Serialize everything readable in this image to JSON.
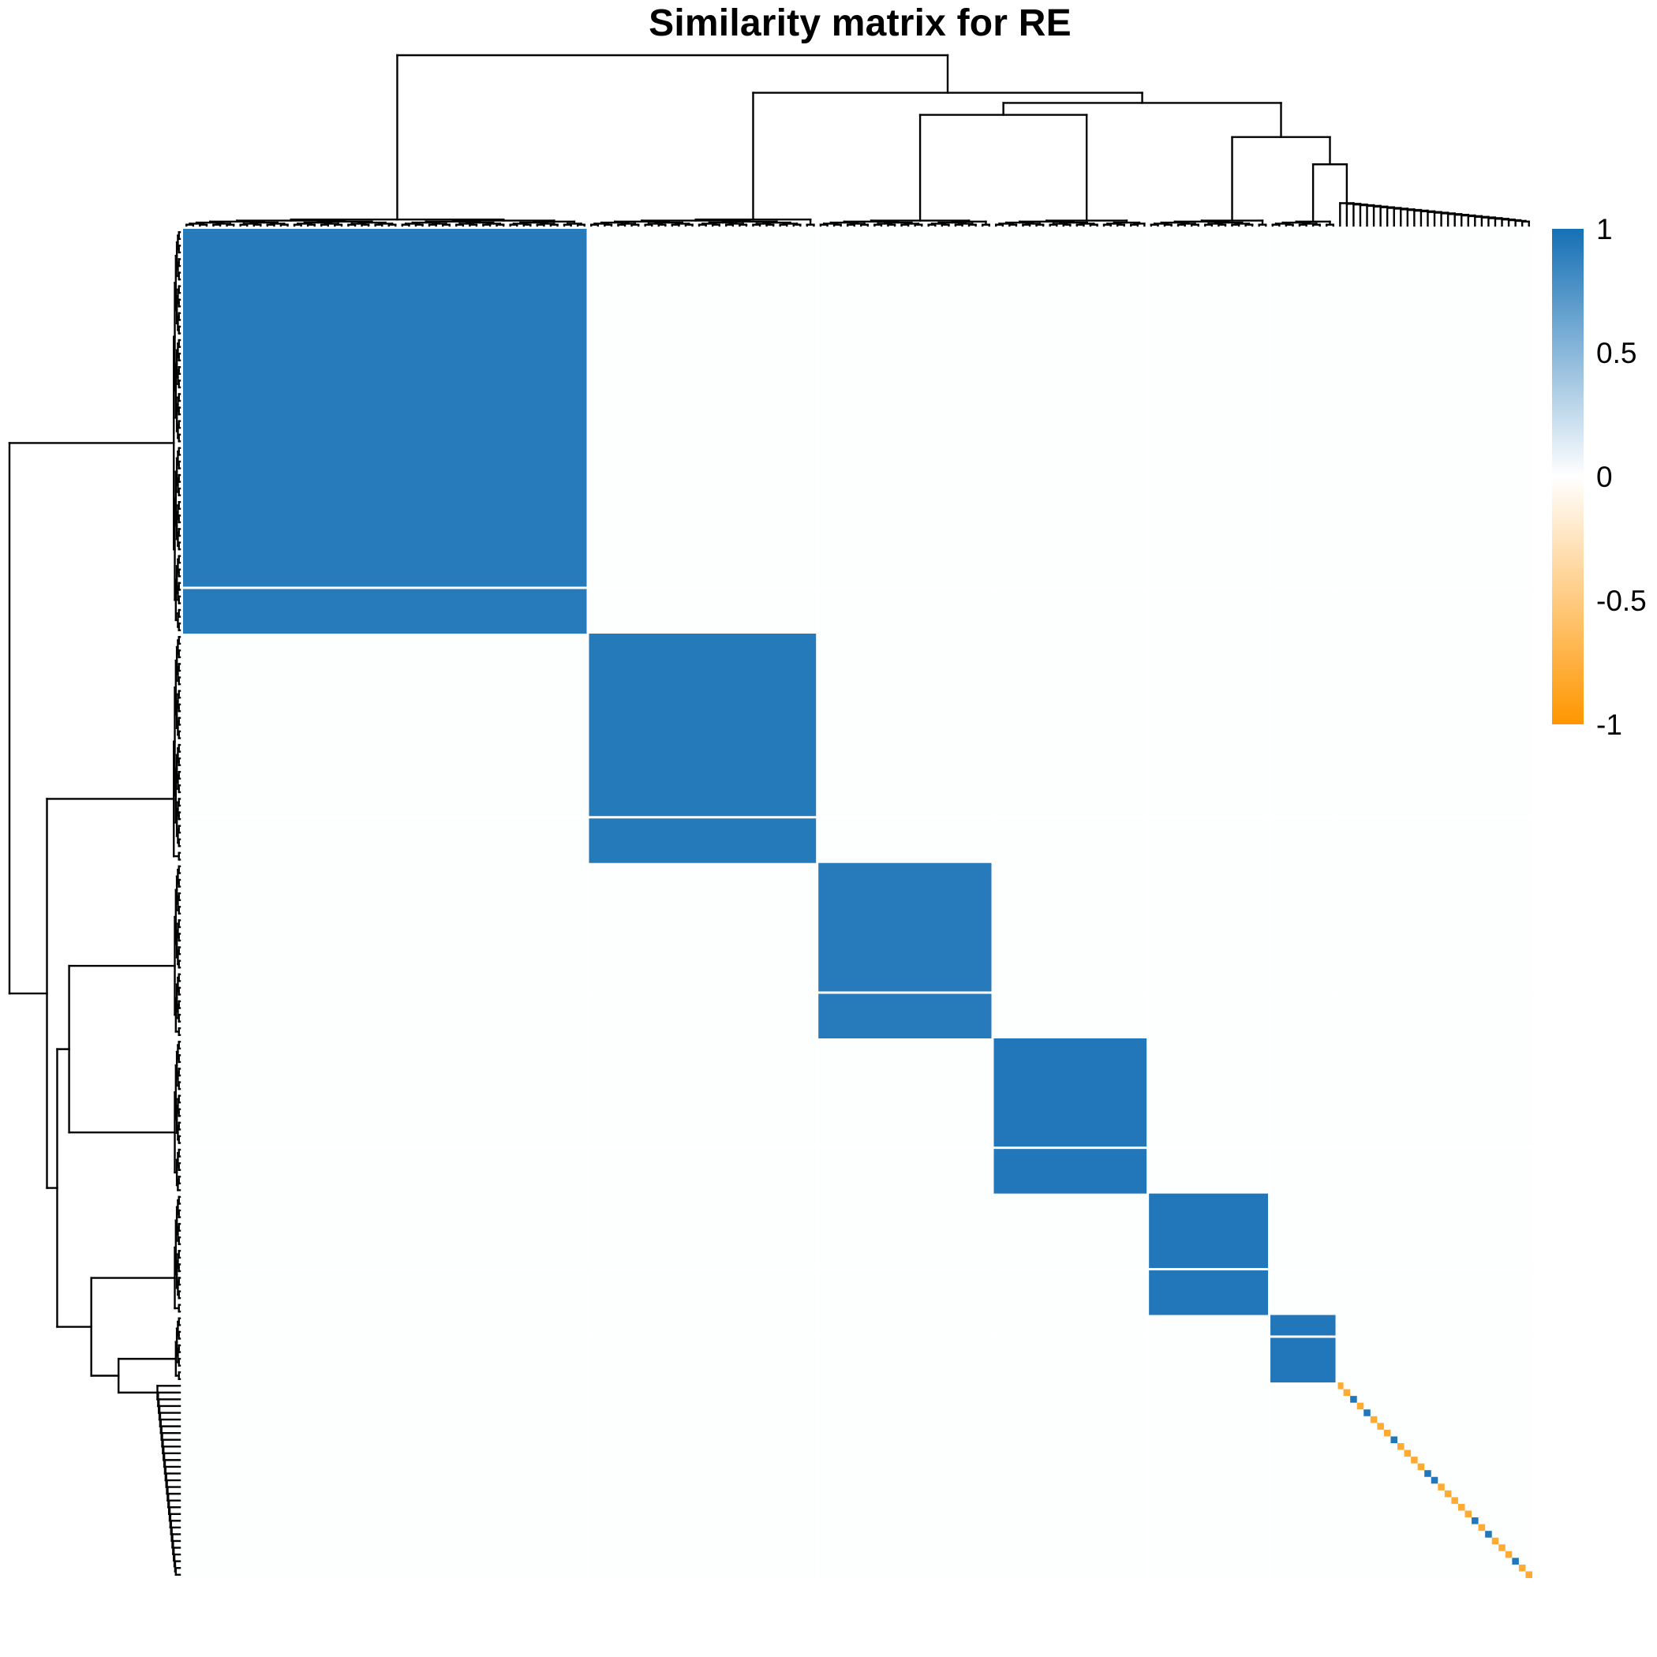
{
  "chart_data": {
    "type": "heatmap",
    "title": "Similarity matrix for RE",
    "value_range": [
      -1,
      1
    ],
    "colorbar": {
      "ticks": [
        1,
        0.5,
        0,
        -0.5,
        -1
      ],
      "tick_labels": [
        "1",
        "0.5",
        "0",
        "-0.5",
        "-1"
      ],
      "colors": {
        "high": "#1570b5",
        "mid": "#ffffff",
        "low": "#ff9600"
      }
    },
    "grid": false,
    "dendrograms": [
      "top",
      "left"
    ],
    "matrix": {
      "n": 200,
      "clusters": [
        {
          "size": 60,
          "value": 0.92
        },
        {
          "size": 34,
          "value": 0.93
        },
        {
          "size": 26,
          "value": 0.92
        },
        {
          "size": 23,
          "value": 0.95
        },
        {
          "size": 18,
          "value": 0.95
        },
        {
          "size": 10,
          "value": 0.95
        },
        {
          "size": 29,
          "value": 0
        }
      ],
      "background_value": 0.01,
      "diagonal_tail_value": -0.8
    }
  }
}
